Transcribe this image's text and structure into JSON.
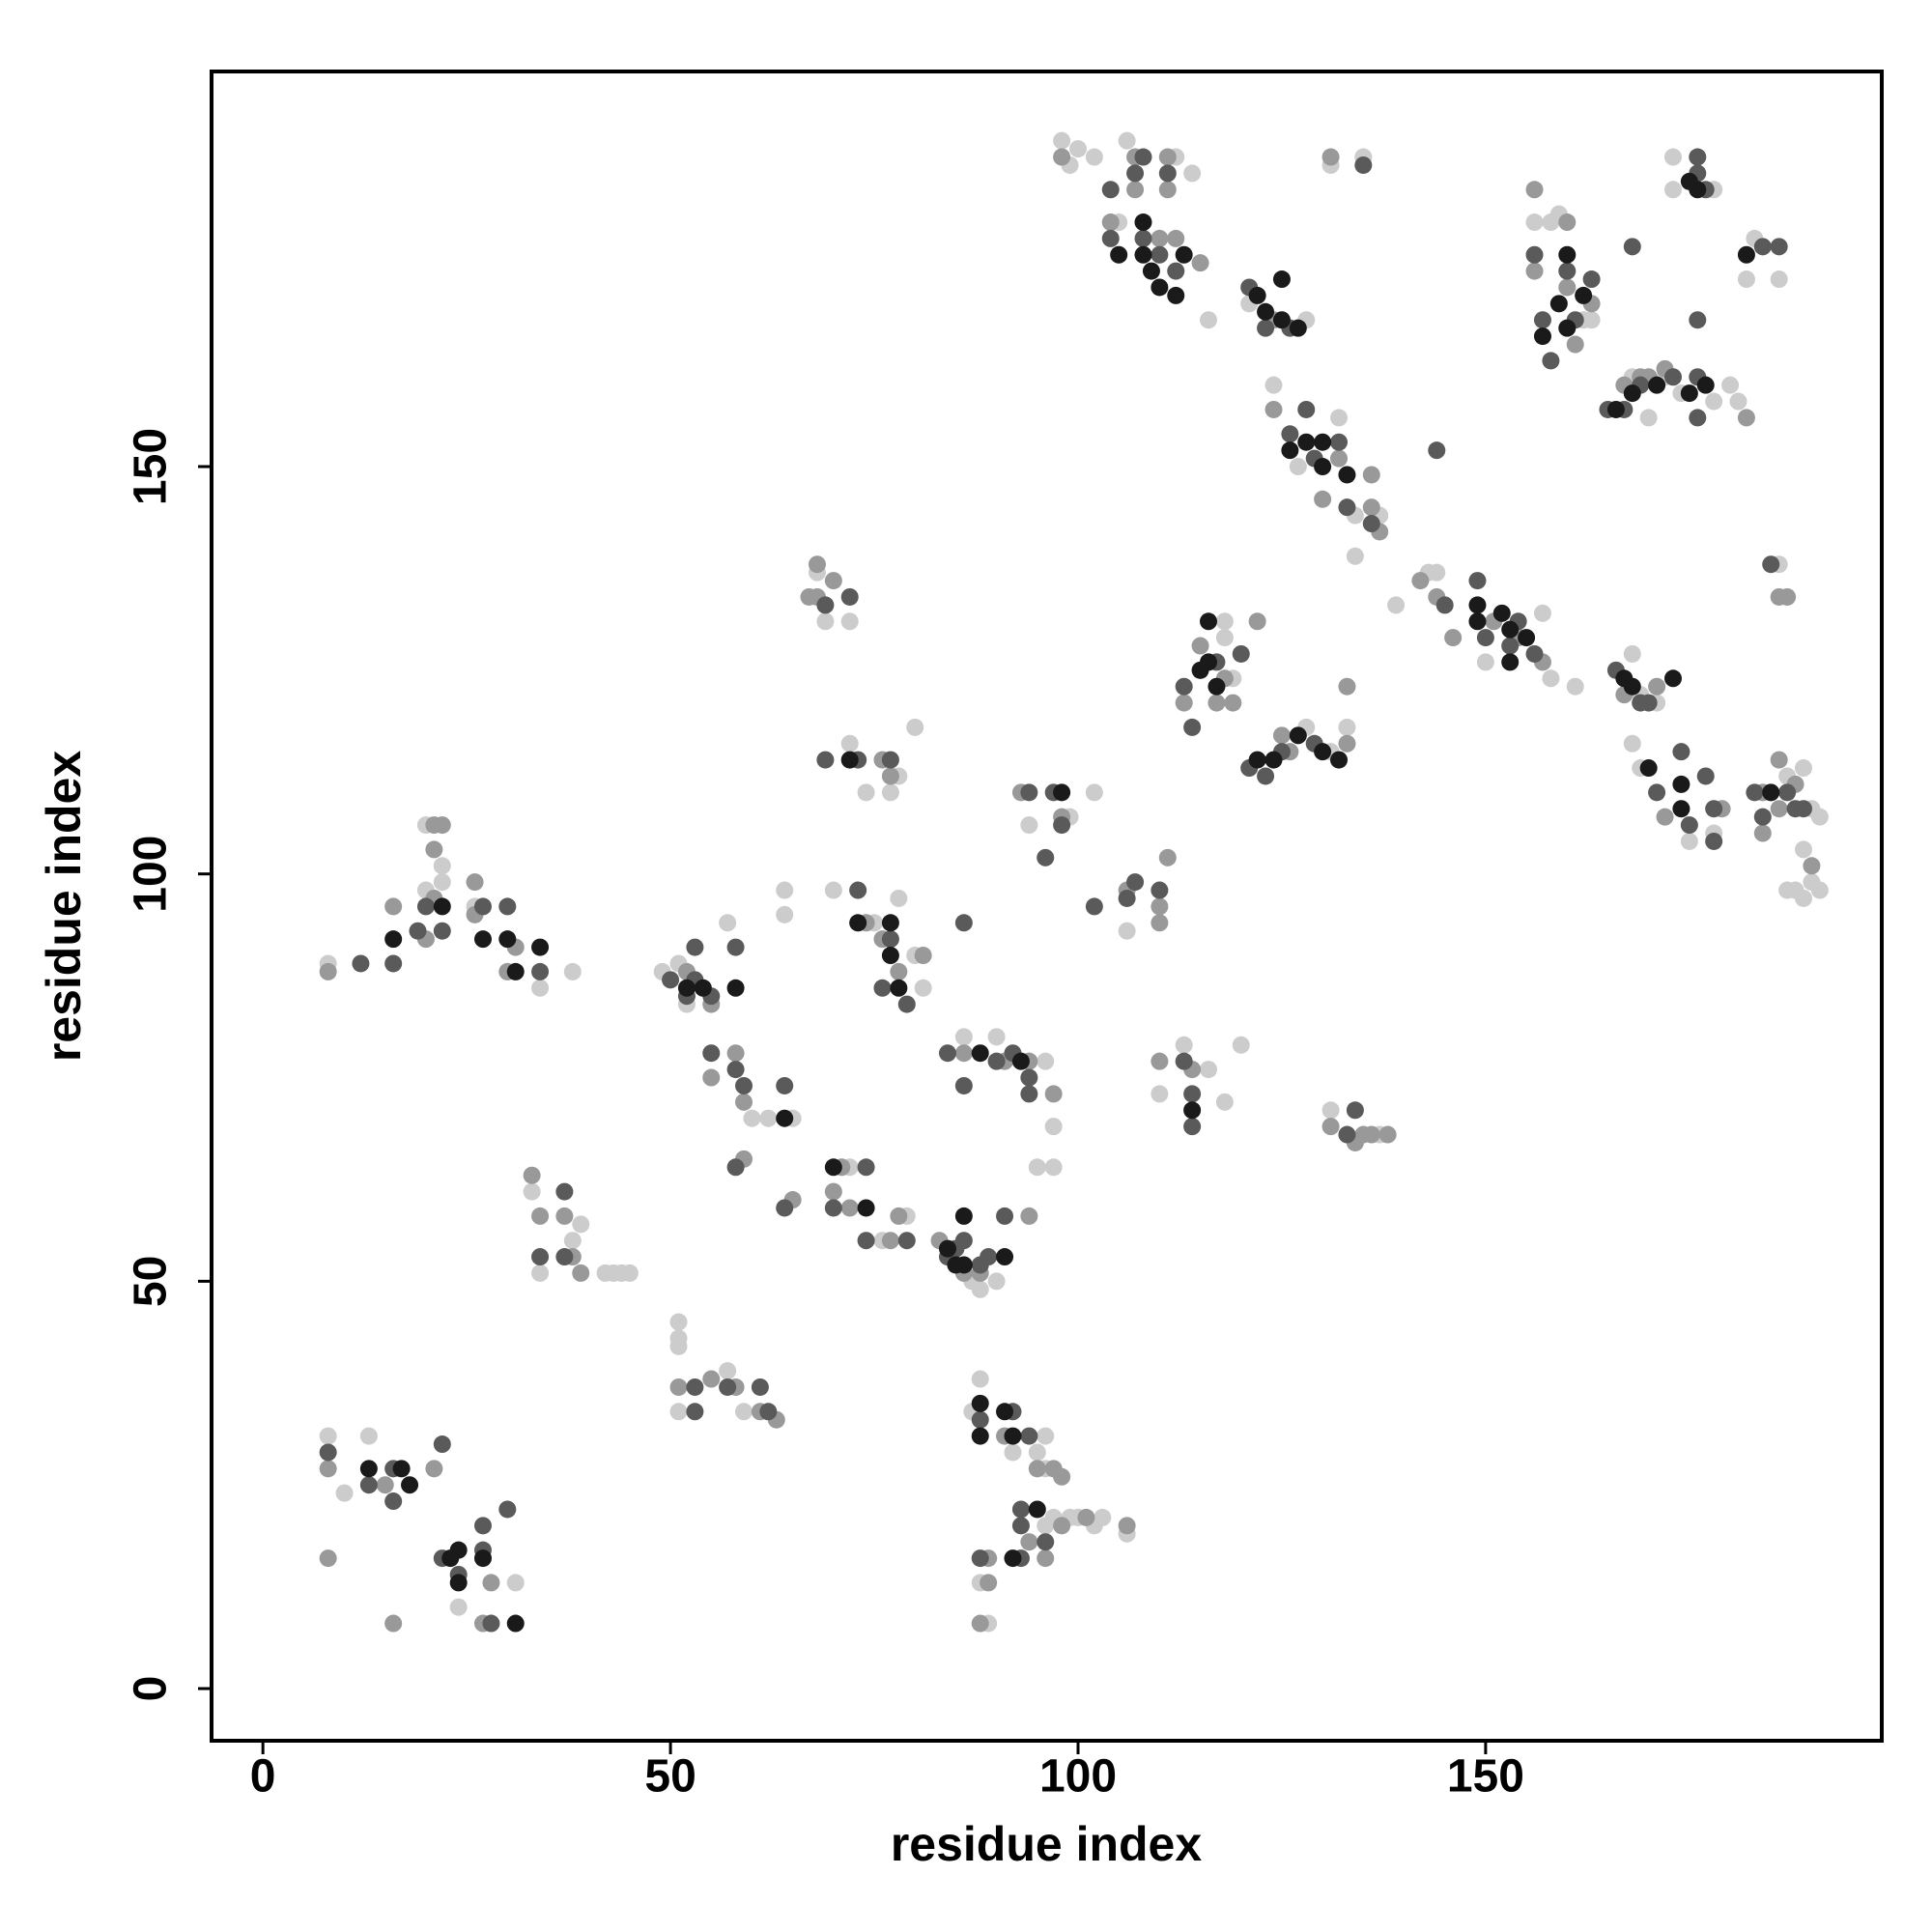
{
  "chart_data": {
    "type": "scatter",
    "x_label": "residue index",
    "y_label": "residue index",
    "xlim": [
      -6.3,
      198.6
    ],
    "ylim": [
      -6.4,
      198.5
    ],
    "xticks": [
      0,
      50,
      100,
      150
    ],
    "yticks": [
      0,
      50,
      100,
      150
    ],
    "series": [
      {
        "color": "#1a1a1a",
        "x": [
          13,
          17,
          18,
          23,
          24,
          24,
          27,
          31,
          16,
          22,
          27,
          30,
          31,
          34,
          52,
          54,
          58,
          64,
          72,
          73,
          77,
          77,
          78,
          70,
          74,
          84,
          85,
          86,
          86,
          91,
          88,
          93,
          88,
          88,
          91,
          92,
          95,
          92,
          98,
          114,
          105,
          108,
          108,
          109,
          110,
          112,
          113,
          122,
          123,
          125,
          125,
          127,
          126,
          128,
          130,
          130,
          133,
          149,
          149,
          152,
          153,
          153,
          155,
          115,
          116,
          116,
          117,
          122,
          124,
          127,
          130,
          132,
          157,
          160,
          160,
          162,
          159,
          166,
          168,
          171,
          175,
          177,
          175,
          176,
          182,
          167,
          168,
          173,
          170,
          174,
          174,
          185
        ],
        "y": [
          27,
          27,
          25,
          16,
          17,
          13,
          16,
          8,
          92,
          96,
          92,
          92,
          88,
          91,
          86,
          86,
          86,
          70,
          114,
          94,
          94,
          90,
          86,
          64,
          59,
          54,
          52,
          52,
          58,
          53,
          78,
          77,
          35,
          31,
          34,
          31,
          22,
          16,
          110,
          71,
          176,
          180,
          176,
          174,
          172,
          171,
          176,
          171,
          169,
          173,
          168,
          167,
          152,
          153,
          153,
          150,
          149,
          133,
          131,
          132,
          130,
          126,
          129,
          125,
          126,
          131,
          123,
          114,
          114,
          117,
          115,
          114,
          166,
          176,
          167,
          171,
          170,
          157,
          159,
          160,
          159,
          160,
          185,
          184,
          176,
          124,
          123,
          124,
          113,
          111,
          108,
          110
        ]
      },
      {
        "color": "#5a5a5a",
        "x": [
          8,
          13,
          16,
          16,
          22,
          22,
          24,
          27,
          27,
          30,
          28,
          34,
          37,
          37,
          12,
          16,
          19,
          20,
          22,
          27,
          30,
          34,
          50,
          52,
          53,
          53,
          55,
          58,
          55,
          58,
          59,
          64,
          58,
          64,
          53,
          53,
          57,
          61,
          62,
          69,
          72,
          69,
          73,
          77,
          73,
          76,
          77,
          79,
          74,
          70,
          74,
          79,
          84,
          85,
          86,
          88,
          89,
          91,
          84,
          86,
          90,
          92,
          94,
          94,
          86,
          88,
          92,
          94,
          93,
          93,
          96,
          88,
          93,
          94,
          97,
          98,
          96,
          102,
          106,
          107,
          110,
          113,
          114,
          114,
          133,
          134,
          104,
          104,
          107,
          108,
          108,
          110,
          111,
          112,
          121,
          123,
          126,
          126,
          128,
          129,
          132,
          133,
          136,
          144,
          135,
          145,
          149,
          150,
          153,
          154,
          156,
          113,
          114,
          117,
          120,
          123,
          125,
          129,
          121,
          156,
          157,
          158,
          160,
          161,
          163,
          165,
          167,
          169,
          173,
          176,
          176,
          176,
          176,
          177,
          168,
          176,
          184,
          186,
          166,
          169,
          170,
          171,
          174,
          175,
          177,
          178,
          178,
          185,
          183,
          184,
          187,
          188,
          189
        ],
        "y": [
          29,
          25,
          23,
          27,
          30,
          16,
          14,
          17,
          20,
          22,
          8,
          53,
          61,
          53,
          89,
          89,
          93,
          96,
          93,
          96,
          96,
          88,
          87,
          85,
          87,
          91,
          85,
          91,
          78,
          76,
          74,
          74,
          64,
          59,
          37,
          34,
          37,
          37,
          34,
          133,
          134,
          114,
          114,
          114,
          98,
          86,
          92,
          84,
          64,
          59,
          55,
          55,
          53,
          54,
          55,
          52,
          53,
          58,
          78,
          74,
          77,
          78,
          75,
          73,
          94,
          33,
          34,
          31,
          22,
          20,
          18,
          16,
          16,
          110,
          110,
          106,
          102,
          96,
          97,
          99,
          98,
          77,
          73,
          69,
          68,
          71,
          184,
          178,
          186,
          188,
          178,
          176,
          186,
          174,
          172,
          167,
          167,
          154,
          157,
          151,
          153,
          145,
          143,
          152,
          187,
          133,
          136,
          129,
          128,
          131,
          127,
          123,
          118,
          126,
          127,
          112,
          115,
          116,
          113,
          176,
          168,
          163,
          174,
          168,
          173,
          157,
          157,
          160,
          161,
          161,
          156,
          186,
          188,
          184,
          177,
          168,
          177,
          177,
          125,
          121,
          121,
          110,
          115,
          106,
          112,
          104,
          108,
          138,
          110,
          107,
          110,
          108,
          108
        ]
      },
      {
        "color": "#999999",
        "x": [
          8,
          15,
          21,
          8,
          28,
          27,
          16,
          33,
          34,
          37,
          38,
          39,
          8,
          16,
          20,
          21,
          22,
          21,
          21,
          26,
          26,
          30,
          31,
          52,
          55,
          55,
          58,
          59,
          59,
          65,
          51,
          55,
          58,
          61,
          63,
          68,
          68,
          70,
          67,
          76,
          77,
          74,
          76,
          78,
          81,
          71,
          70,
          72,
          77,
          78,
          83,
          86,
          88,
          94,
          86,
          91,
          94,
          97,
          91,
          95,
          97,
          98,
          94,
          98,
          101,
          106,
          89,
          89,
          88,
          96,
          93,
          98,
          106,
          110,
          110,
          111,
          110,
          114,
          131,
          134,
          135,
          136,
          138,
          98,
          104,
          107,
          107,
          110,
          111,
          111,
          112,
          115,
          124,
          124,
          130,
          132,
          136,
          137,
          136,
          131,
          142,
          144,
          146,
          151,
          154,
          157,
          113,
          115,
          117,
          118,
          119,
          122,
          125,
          126,
          133,
          133,
          156,
          156,
          160,
          160,
          161,
          163,
          167,
          169,
          170,
          172,
          182,
          167,
          171,
          172,
          179,
          186,
          187,
          184,
          186,
          186,
          188,
          190,
          184
        ],
        "y": [
          27,
          25,
          27,
          16,
          13,
          8,
          8,
          63,
          58,
          58,
          53,
          51,
          88,
          96,
          92,
          106,
          106,
          103,
          97,
          99,
          95,
          88,
          91,
          88,
          84,
          75,
          78,
          72,
          65,
          60,
          37,
          38,
          37,
          34,
          33,
          138,
          134,
          136,
          134,
          114,
          112,
          94,
          92,
          88,
          90,
          64,
          61,
          59,
          55,
          58,
          55,
          51,
          51,
          58,
          78,
          77,
          77,
          73,
          31,
          27,
          27,
          26,
          18,
          20,
          21,
          20,
          16,
          13,
          8,
          16,
          110,
          107,
          98,
          96,
          94,
          102,
          77,
          76,
          69,
          67,
          68,
          68,
          68,
          188,
          180,
          188,
          184,
          178,
          188,
          184,
          178,
          175,
          168,
          157,
          146,
          151,
          145,
          142,
          149,
          188,
          136,
          134,
          129,
          131,
          129,
          126,
          121,
          128,
          121,
          124,
          121,
          131,
          117,
          115,
          116,
          123,
          184,
          174,
          180,
          172,
          165,
          170,
          160,
          161,
          161,
          162,
          156,
          122,
          123,
          107,
          108,
          134,
          134,
          110,
          114,
          108,
          111,
          101,
          105
        ]
      },
      {
        "color": "#cccccc",
        "x": [
          8,
          13,
          10,
          31,
          24,
          33,
          34,
          38,
          39,
          42,
          43,
          44,
          45,
          8,
          20,
          20,
          22,
          22,
          26,
          34,
          38,
          49,
          51,
          52,
          57,
          60,
          62,
          65,
          51,
          51,
          51,
          51,
          57,
          59,
          68,
          69,
          72,
          72,
          74,
          77,
          78,
          80,
          70,
          75,
          78,
          80,
          81,
          64,
          64,
          72,
          76,
          79,
          87,
          88,
          90,
          86,
          90,
          95,
          96,
          97,
          97,
          87,
          88,
          92,
          95,
          96,
          96,
          96,
          97,
          99,
          100,
          102,
          103,
          106,
          88,
          89,
          94,
          99,
          102,
          106,
          110,
          113,
          116,
          118,
          120,
          131,
          137,
          98,
          99,
          100,
          102,
          105,
          106,
          112,
          114,
          116,
          121,
          128,
          124,
          127,
          132,
          134,
          134,
          137,
          131,
          135,
          139,
          143,
          144,
          150,
          157,
          158,
          161,
          118,
          118,
          119,
          128,
          131,
          133,
          156,
          158,
          159,
          162,
          163,
          168,
          172,
          174,
          178,
          180,
          181,
          170,
          173,
          173,
          178,
          183,
          186,
          182,
          168,
          169,
          171,
          168,
          169,
          175,
          178,
          186,
          187,
          189,
          190,
          191,
          189,
          187,
          188,
          189,
          190,
          191
        ],
        "y": [
          31,
          31,
          24,
          13,
          10,
          61,
          51,
          55,
          57,
          51,
          51,
          51,
          51,
          89,
          98,
          106,
          101,
          99,
          96,
          86,
          88,
          88,
          89,
          84,
          94,
          70,
          70,
          70,
          45,
          43,
          42,
          34,
          39,
          34,
          137,
          131,
          131,
          116,
          110,
          110,
          112,
          118,
          98,
          94,
          97,
          90,
          86,
          98,
          95,
          64,
          55,
          58,
          50,
          49,
          50,
          80,
          80,
          64,
          77,
          69,
          64,
          34,
          38,
          29,
          29,
          27,
          31,
          20,
          21,
          21,
          21,
          20,
          21,
          19,
          13,
          8,
          106,
          107,
          110,
          93,
          73,
          79,
          76,
          72,
          79,
          71,
          68,
          190,
          187,
          189,
          188,
          180,
          190,
          188,
          186,
          168,
          170,
          168,
          160,
          150,
          156,
          144,
          139,
          144,
          187,
          188,
          133,
          137,
          137,
          126,
          132,
          124,
          123,
          129,
          131,
          124,
          118,
          115,
          118,
          180,
          180,
          181,
          168,
          168,
          161,
          161,
          159,
          158,
          160,
          158,
          156,
          188,
          184,
          184,
          178,
          173,
          173,
          127,
          122,
          121,
          116,
          113,
          104,
          105,
          138,
          112,
          113,
          108,
          107,
          103,
          98,
          98,
          97,
          99,
          98
        ]
      }
    ]
  }
}
